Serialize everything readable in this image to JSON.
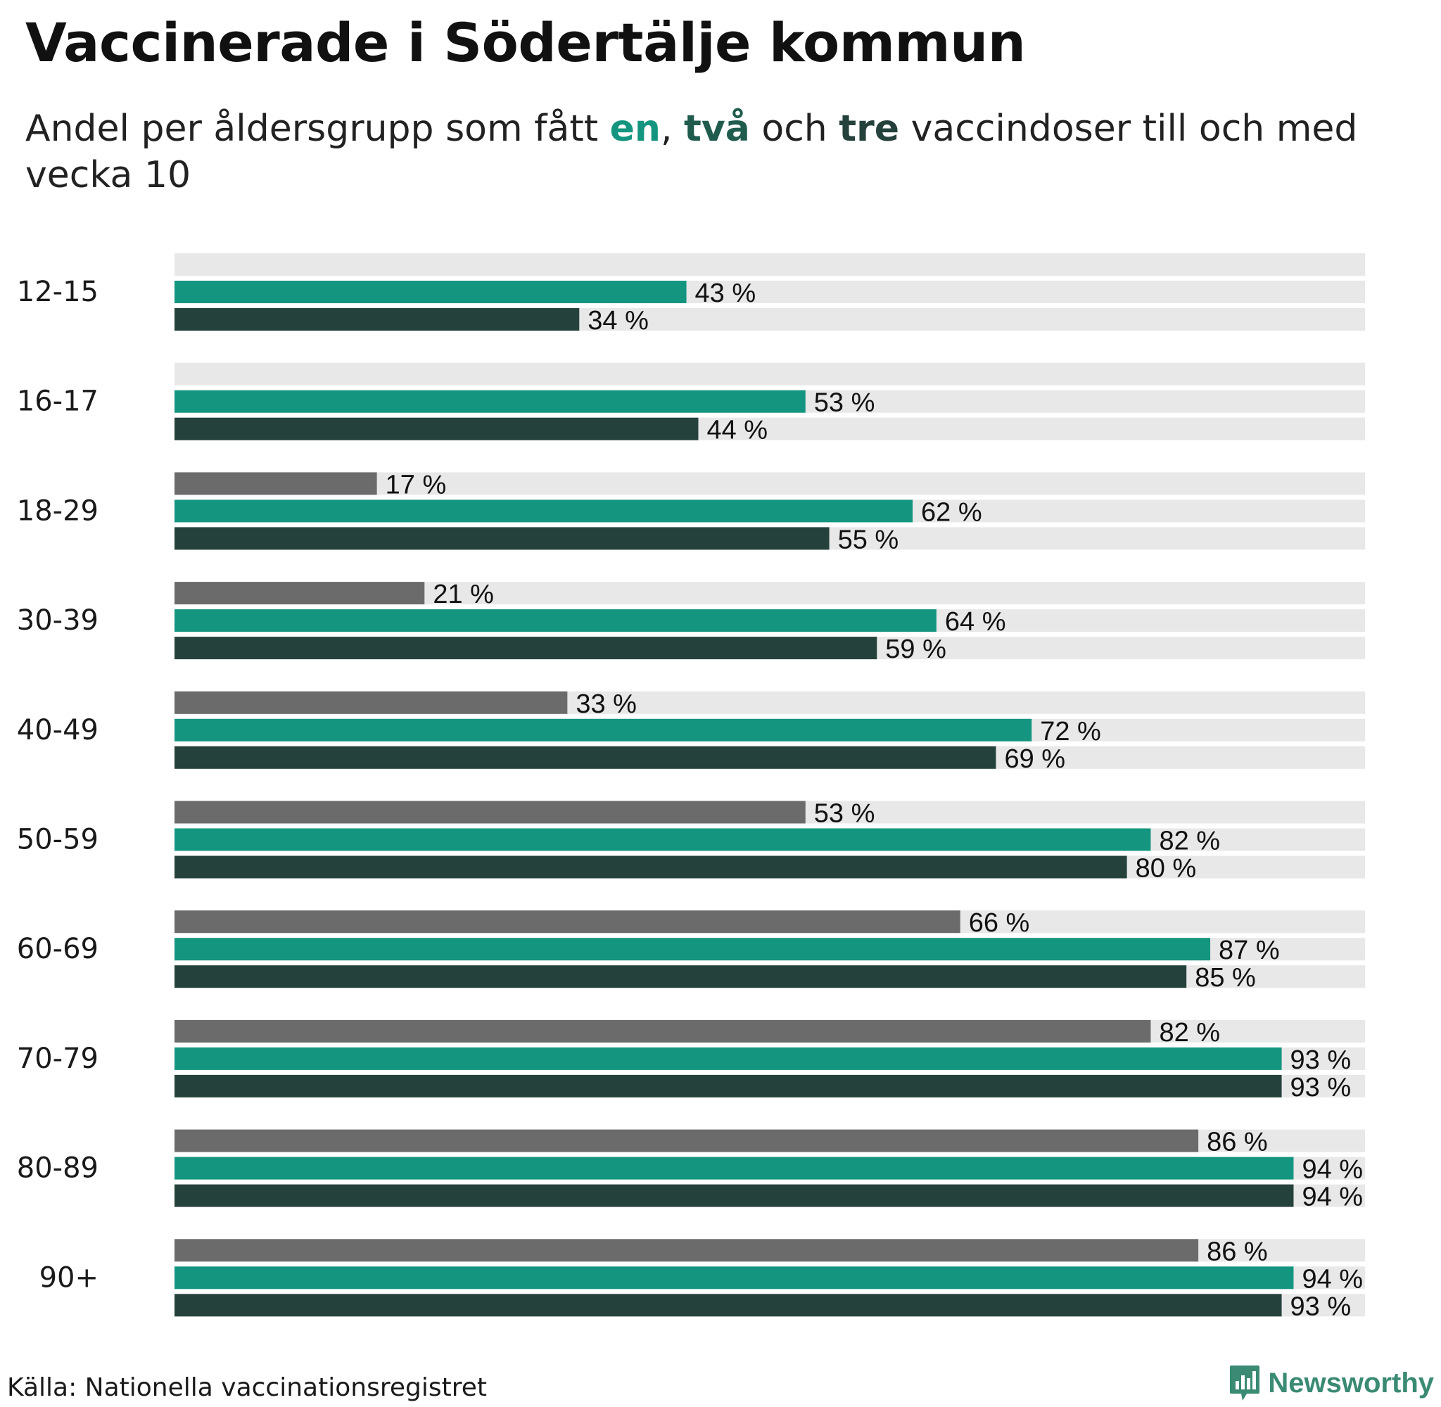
{
  "title": "Vaccinerade i Södertälje kommun",
  "subtitle": {
    "pre": "Andel per åldersgrupp som fått ",
    "k1": "en",
    "sep1": ", ",
    "k2": "två",
    "mid": " och ",
    "k3": "tre",
    "post": " vaccindoser till och med vecka 10"
  },
  "source": "Källa: Nationella vaccinationsregistret",
  "logo": {
    "text": "Newsworthy",
    "icon": "newsworthy-bar-chart-icon"
  },
  "colors": {
    "dose3": "#6b6b6b",
    "dose1": "#14957f",
    "dose2": "#25413c",
    "track": "#e8e8e8",
    "logo": "#3a8a74"
  },
  "chart_data": {
    "type": "bar",
    "orientation": "horizontal",
    "title": "Vaccinerade i Södertälje kommun",
    "xlabel": "",
    "ylabel": "",
    "xlim": [
      0,
      100
    ],
    "unit": " %",
    "grid": false,
    "categories": [
      "12-15",
      "16-17",
      "18-29",
      "30-39",
      "40-49",
      "50-59",
      "60-69",
      "70-79",
      "80-89",
      "90+"
    ],
    "series": [
      {
        "name": "tre",
        "color": "#6b6b6b",
        "values": [
          null,
          null,
          17,
          21,
          33,
          53,
          66,
          82,
          86,
          86
        ]
      },
      {
        "name": "en",
        "color": "#14957f",
        "values": [
          43,
          53,
          62,
          64,
          72,
          82,
          87,
          93,
          94,
          94
        ]
      },
      {
        "name": "två",
        "color": "#25413c",
        "values": [
          34,
          44,
          55,
          59,
          69,
          80,
          85,
          93,
          94,
          93
        ]
      }
    ]
  }
}
